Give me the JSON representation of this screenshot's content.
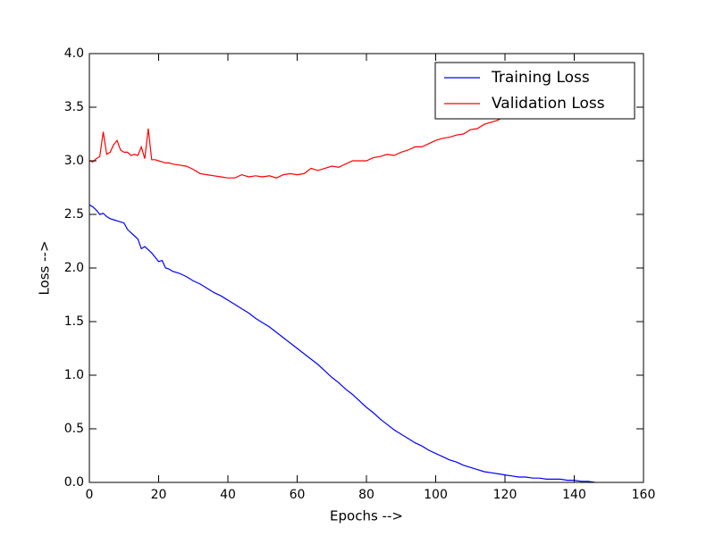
{
  "chart_data": {
    "type": "line",
    "x_label": "Epochs -->",
    "y_label": "Loss -->",
    "x": [
      0,
      1,
      2,
      3,
      4,
      5,
      6,
      7,
      8,
      9,
      10,
      11,
      12,
      13,
      14,
      15,
      16,
      17,
      18,
      19,
      20,
      21,
      22,
      23,
      24,
      26,
      28,
      30,
      32,
      34,
      36,
      38,
      40,
      42,
      44,
      46,
      48,
      50,
      52,
      54,
      56,
      58,
      60,
      62,
      64,
      66,
      68,
      70,
      72,
      74,
      76,
      78,
      80,
      82,
      84,
      86,
      88,
      90,
      92,
      94,
      96,
      98,
      100,
      102,
      104,
      106,
      108,
      110,
      112,
      114,
      116,
      118,
      120,
      122,
      124,
      126,
      128,
      130,
      132,
      134,
      136,
      138,
      140,
      142,
      144,
      146
    ],
    "series": [
      {
        "name": "Training Loss",
        "color": "#0000ff",
        "values": [
          2.59,
          2.57,
          2.54,
          2.5,
          2.51,
          2.48,
          2.46,
          2.45,
          2.44,
          2.43,
          2.42,
          2.36,
          2.33,
          2.3,
          2.27,
          2.18,
          2.2,
          2.17,
          2.14,
          2.1,
          2.06,
          2.07,
          2.0,
          1.99,
          1.97,
          1.95,
          1.92,
          1.88,
          1.85,
          1.81,
          1.77,
          1.74,
          1.7,
          1.66,
          1.62,
          1.58,
          1.53,
          1.49,
          1.45,
          1.4,
          1.35,
          1.3,
          1.25,
          1.2,
          1.15,
          1.1,
          1.04,
          0.98,
          0.93,
          0.87,
          0.82,
          0.76,
          0.7,
          0.65,
          0.59,
          0.54,
          0.49,
          0.45,
          0.41,
          0.37,
          0.34,
          0.3,
          0.27,
          0.24,
          0.21,
          0.19,
          0.16,
          0.14,
          0.12,
          0.1,
          0.09,
          0.08,
          0.07,
          0.06,
          0.05,
          0.05,
          0.04,
          0.04,
          0.03,
          0.03,
          0.03,
          0.02,
          0.02,
          0.01,
          0.01,
          0.0
        ]
      },
      {
        "name": "Validation Loss",
        "color": "#ff0000",
        "values": [
          3.0,
          2.99,
          3.02,
          3.04,
          3.27,
          3.06,
          3.08,
          3.15,
          3.19,
          3.1,
          3.08,
          3.08,
          3.05,
          3.06,
          3.05,
          3.13,
          3.02,
          3.3,
          3.01,
          3.01,
          3.0,
          2.99,
          2.98,
          2.98,
          2.97,
          2.96,
          2.95,
          2.92,
          2.88,
          2.87,
          2.86,
          2.85,
          2.84,
          2.84,
          2.87,
          2.85,
          2.86,
          2.85,
          2.86,
          2.84,
          2.87,
          2.88,
          2.87,
          2.88,
          2.93,
          2.91,
          2.93,
          2.95,
          2.94,
          2.97,
          3.0,
          3.0,
          3.0,
          3.03,
          3.04,
          3.06,
          3.05,
          3.08,
          3.1,
          3.13,
          3.13,
          3.16,
          3.19,
          3.21,
          3.22,
          3.24,
          3.25,
          3.29,
          3.3,
          3.34,
          3.36,
          3.38,
          3.42,
          3.45,
          3.48,
          3.5,
          3.53,
          3.55,
          3.58,
          3.6,
          3.63,
          3.65,
          3.68,
          3.7,
          3.73,
          3.75
        ]
      }
    ],
    "xlim": [
      0,
      160
    ],
    "xticks": [
      0,
      20,
      40,
      60,
      80,
      100,
      120,
      140,
      160
    ],
    "ylim": [
      0,
      4
    ],
    "yticks": [
      {
        "value": 0,
        "label": "0.0"
      },
      {
        "value": 0.5,
        "label": "0.5"
      },
      {
        "value": 1,
        "label": "1.0"
      },
      {
        "value": 1.5,
        "label": "1.5"
      },
      {
        "value": 2,
        "label": "2.0"
      },
      {
        "value": 2.5,
        "label": "2.5"
      },
      {
        "value": 3,
        "label": "3.0"
      },
      {
        "value": 3.5,
        "label": "3.5"
      },
      {
        "value": 4,
        "label": "4.0"
      }
    ],
    "legend": "upper right",
    "grid": false
  }
}
